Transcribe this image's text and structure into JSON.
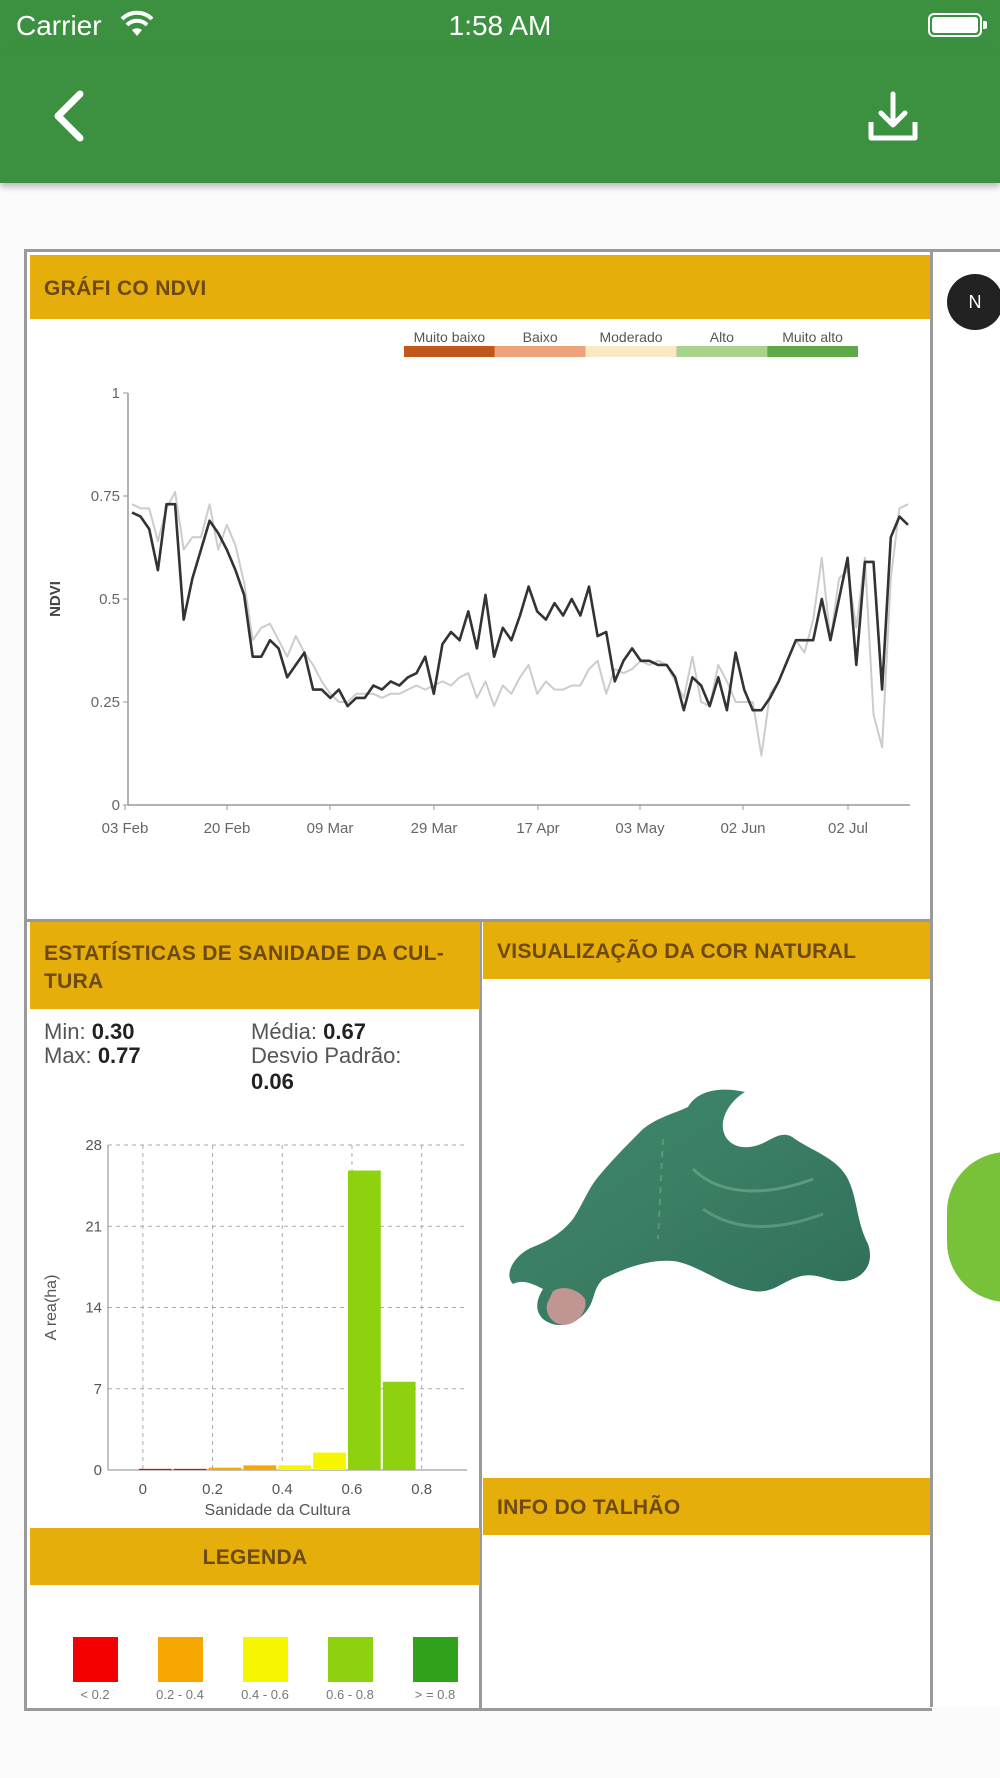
{
  "status_bar": {
    "carrier": "Carrier",
    "time": "1:58 AM"
  },
  "nav": {
    "back_icon": "chevron-left-icon",
    "download_icon": "download-icon"
  },
  "ndvi": {
    "title": "GRÁFI CO NDVI",
    "legend": [
      {
        "label": "Muito baixo",
        "color": "#c0581c"
      },
      {
        "label": "Baixo",
        "color": "#eea27a"
      },
      {
        "label": "Moderado",
        "color": "#fbe8c4"
      },
      {
        "label": "Alto",
        "color": "#a8d38b"
      },
      {
        "label": "Muito alto",
        "color": "#5fa845"
      }
    ]
  },
  "stats": {
    "title": "ESTATÍSTICAS DE SANIDADE DA CUL-TURA",
    "min_label": "Min:",
    "min_value": "0.30",
    "max_label": "Max:",
    "max_value": "0.77",
    "mean_label": "Média:",
    "mean_value": "0.67",
    "std_label": "Desvio Padrão:",
    "std_value": "0.06"
  },
  "visual": {
    "title": "VISUALIZAÇÃO DA COR NATURAL"
  },
  "info": {
    "title": "INFO DO TALHÃO"
  },
  "legenda": {
    "title": "LEGENDA",
    "items": [
      {
        "label": "< 0.2",
        "color": "#f40000"
      },
      {
        "label": "0.2 - 0.4",
        "color": "#f7a800"
      },
      {
        "label": "0.4 - 0.6",
        "color": "#f6f600"
      },
      {
        "label": "0.6 - 0.8",
        "color": "#8dd10f"
      },
      {
        "label": "> = 0.8",
        "color": "#2fa11a"
      }
    ]
  },
  "north_label": "N",
  "chart_data": [
    {
      "type": "line",
      "title": "",
      "xlabel": "",
      "ylabel": "NDVI",
      "ylim": [
        0,
        1
      ],
      "yticks": [
        "0",
        "0.25",
        "0.5",
        "0.75",
        "1"
      ],
      "xticks": [
        "03 Feb",
        "20 Feb",
        "09 Mar",
        "29 Mar",
        "17 Apr",
        "03 May",
        "02 Jun",
        "02 Jul"
      ],
      "grid": false,
      "series": [
        {
          "color": "#333333",
          "values": [
            0.71,
            0.7,
            0.67,
            0.57,
            0.73,
            0.73,
            0.45,
            0.55,
            0.62,
            0.69,
            0.66,
            0.62,
            0.57,
            0.51,
            0.36,
            0.36,
            0.4,
            0.38,
            0.31,
            0.34,
            0.37,
            0.28,
            0.28,
            0.26,
            0.28,
            0.24,
            0.26,
            0.26,
            0.29,
            0.28,
            0.3,
            0.29,
            0.31,
            0.32,
            0.36,
            0.27,
            0.39,
            0.42,
            0.4,
            0.47,
            0.38,
            0.51,
            0.36,
            0.43,
            0.4,
            0.46,
            0.53,
            0.47,
            0.45,
            0.49,
            0.46,
            0.5,
            0.46,
            0.53,
            0.41,
            0.42,
            0.3,
            0.35,
            0.38,
            0.35,
            0.35,
            0.34,
            0.34,
            0.31,
            0.23,
            0.31,
            0.29,
            0.24,
            0.31,
            0.23,
            0.37,
            0.28,
            0.23,
            0.23,
            0.26,
            0.3,
            0.35,
            0.4,
            0.4,
            0.4,
            0.5,
            0.4,
            0.5,
            0.6,
            0.34,
            0.59,
            0.59,
            0.28,
            0.65,
            0.7,
            0.68
          ]
        },
        {
          "color": "#cccccc",
          "values": [
            0.73,
            0.72,
            0.72,
            0.64,
            0.72,
            0.76,
            0.62,
            0.65,
            0.65,
            0.73,
            0.62,
            0.68,
            0.63,
            0.54,
            0.4,
            0.43,
            0.44,
            0.4,
            0.36,
            0.41,
            0.37,
            0.34,
            0.3,
            0.27,
            0.25,
            0.25,
            0.27,
            0.27,
            0.27,
            0.26,
            0.27,
            0.27,
            0.28,
            0.29,
            0.28,
            0.29,
            0.3,
            0.29,
            0.31,
            0.32,
            0.26,
            0.3,
            0.24,
            0.29,
            0.27,
            0.31,
            0.34,
            0.27,
            0.3,
            0.28,
            0.28,
            0.29,
            0.29,
            0.33,
            0.35,
            0.27,
            0.33,
            0.32,
            0.33,
            0.35,
            0.34,
            0.35,
            0.34,
            0.3,
            0.26,
            0.36,
            0.25,
            0.24,
            0.34,
            0.3,
            0.25,
            0.25,
            0.25,
            0.12,
            0.27,
            0.3,
            0.35,
            0.4,
            0.37,
            0.45,
            0.6,
            0.4,
            0.55,
            0.57,
            0.43,
            0.6,
            0.22,
            0.14,
            0.55,
            0.72,
            0.73
          ]
        }
      ]
    },
    {
      "type": "bar",
      "title": "",
      "xlabel": "Sanidade da Cultura",
      "ylabel": "A rea(ha)",
      "ylim": [
        0,
        28
      ],
      "xlim": [
        -0.1,
        0.93
      ],
      "yticks": [
        "0",
        "7",
        "14",
        "21",
        "28"
      ],
      "xticks": [
        "0",
        "0.2",
        "0.4",
        "0.6",
        "0.8"
      ],
      "grid": true,
      "x": [
        0.0,
        0.1,
        0.2,
        0.3,
        0.4,
        0.5,
        0.6,
        0.7
      ],
      "values": [
        0.1,
        0.1,
        0.2,
        0.4,
        0.4,
        1.5,
        25.8,
        7.6
      ],
      "colors": [
        "#f40000",
        "#f40000",
        "#f7a800",
        "#f7a800",
        "#f6f600",
        "#f6f600",
        "#8dd10f",
        "#8dd10f"
      ]
    }
  ]
}
